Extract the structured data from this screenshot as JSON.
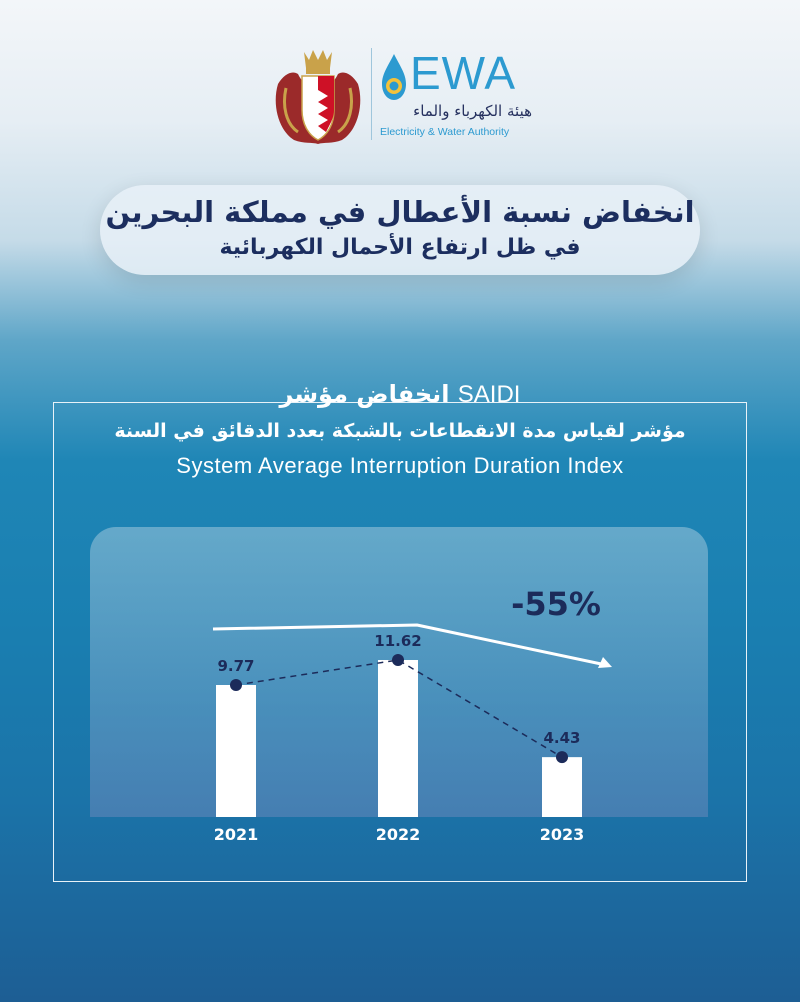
{
  "logo": {
    "brand": "EWA",
    "arabic_name": "هيئة الكهرباء والماء",
    "english_name": "Electricity & Water Authority"
  },
  "headline": {
    "line1": "انخفاض نسبة الأعطال في مملكة البحرين",
    "line2": "في ظل ارتفاع الأحمال الكهربائية"
  },
  "section": {
    "title_ar": "انخفاض مؤشر",
    "title_en": "SAIDI",
    "subtitle_ar": "مؤشر لقياس مدة الانقطاعات بالشبكة بعدد الدقائق في السنة",
    "subtitle_en": "System Average Interruption Duration Index"
  },
  "chart_data": {
    "type": "bar",
    "categories": [
      "2021",
      "2022",
      "2023"
    ],
    "values": [
      9.77,
      11.62,
      4.43
    ],
    "value_labels": [
      "9.77",
      "11.62",
      "4.43"
    ],
    "change_label": "-55%",
    "ylim": [
      0,
      13.1
    ],
    "grid": false,
    "colors": {
      "bar": "#ffffff",
      "marker": "#1c2b5a",
      "text": "#1c2b5a",
      "trend": "#ffffff"
    }
  }
}
